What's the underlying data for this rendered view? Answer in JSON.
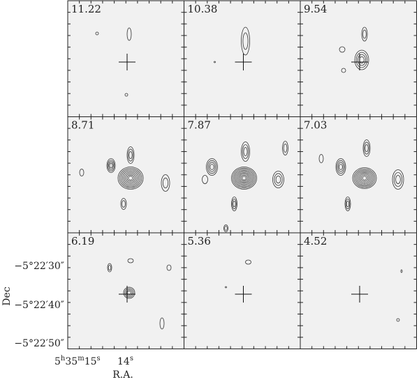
{
  "panels": [
    {
      "label": "11.22"
    },
    {
      "label": "10.38"
    },
    {
      "label": "9.54"
    },
    {
      "label": "8.71"
    },
    {
      "label": "7.87"
    },
    {
      "label": "7.03"
    },
    {
      "label": "6.19"
    },
    {
      "label": "5.36"
    },
    {
      "label": "4.52"
    }
  ],
  "axes": {
    "y_label": "Dec",
    "y_ticks": [
      "−5°22′30″",
      "−5°22′40″",
      "−5°22′50″"
    ],
    "x_label": "R.A.",
    "x_ticks": [
      [
        "5",
        "h",
        "35",
        "m",
        "15",
        "s"
      ],
      [
        "14",
        "s"
      ]
    ]
  }
}
